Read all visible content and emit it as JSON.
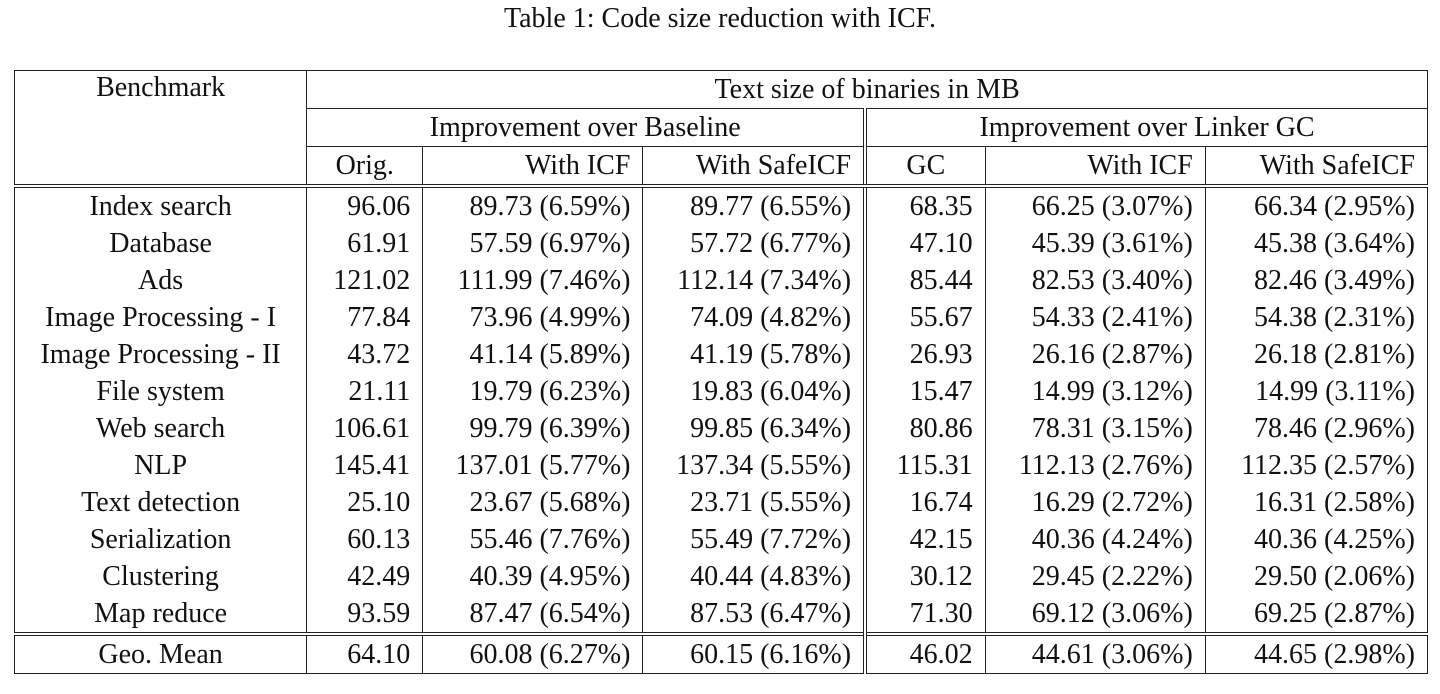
{
  "caption": "Table 1: Code size reduction with ICF.",
  "header": {
    "benchmark": "Benchmark",
    "group": "Text size of binaries in MB",
    "sub_baseline": "Improvement over Baseline",
    "sub_linker_gc": "Improvement over Linker GC",
    "cols": [
      "Orig.",
      "With ICF",
      "With SafeICF",
      "GC",
      "With ICF",
      "With SafeICF"
    ]
  },
  "rows": [
    {
      "name": "Index search",
      "cells": [
        "96.06",
        "89.73 (6.59%)",
        "89.77 (6.55%)",
        "68.35",
        "66.25 (3.07%)",
        "66.34 (2.95%)"
      ]
    },
    {
      "name": "Database",
      "cells": [
        "61.91",
        "57.59 (6.97%)",
        "57.72 (6.77%)",
        "47.10",
        "45.39 (3.61%)",
        "45.38 (3.64%)"
      ]
    },
    {
      "name": "Ads",
      "cells": [
        "121.02",
        "111.99 (7.46%)",
        "112.14 (7.34%)",
        "85.44",
        "82.53 (3.40%)",
        "82.46 (3.49%)"
      ]
    },
    {
      "name": "Image Processing - I",
      "cells": [
        "77.84",
        "73.96 (4.99%)",
        "74.09 (4.82%)",
        "55.67",
        "54.33 (2.41%)",
        "54.38 (2.31%)"
      ]
    },
    {
      "name": "Image Processing - II",
      "cells": [
        "43.72",
        "41.14 (5.89%)",
        "41.19 (5.78%)",
        "26.93",
        "26.16 (2.87%)",
        "26.18 (2.81%)"
      ]
    },
    {
      "name": "File system",
      "cells": [
        "21.11",
        "19.79 (6.23%)",
        "19.83 (6.04%)",
        "15.47",
        "14.99 (3.12%)",
        "14.99 (3.11%)"
      ]
    },
    {
      "name": "Web search",
      "cells": [
        "106.61",
        "99.79 (6.39%)",
        "99.85 (6.34%)",
        "80.86",
        "78.31 (3.15%)",
        "78.46 (2.96%)"
      ]
    },
    {
      "name": "NLP",
      "cells": [
        "145.41",
        "137.01 (5.77%)",
        "137.34 (5.55%)",
        "115.31",
        "112.13 (2.76%)",
        "112.35 (2.57%)"
      ]
    },
    {
      "name": "Text detection",
      "cells": [
        "25.10",
        "23.67 (5.68%)",
        "23.71 (5.55%)",
        "16.74",
        "16.29 (2.72%)",
        "16.31 (2.58%)"
      ]
    },
    {
      "name": "Serialization",
      "cells": [
        "60.13",
        "55.46 (7.76%)",
        "55.49 (7.72%)",
        "42.15",
        "40.36 (4.24%)",
        "40.36 (4.25%)"
      ]
    },
    {
      "name": "Clustering",
      "cells": [
        "42.49",
        "40.39 (4.95%)",
        "40.44 (4.83%)",
        "30.12",
        "29.45 (2.22%)",
        "29.50 (2.06%)"
      ]
    },
    {
      "name": "Map reduce",
      "cells": [
        "93.59",
        "87.47 (6.54%)",
        "87.53 (6.47%)",
        "71.30",
        "69.12 (3.06%)",
        "69.25 (2.87%)"
      ]
    }
  ],
  "geo_mean": {
    "name": "Geo. Mean",
    "cells": [
      "64.10",
      "60.08 (6.27%)",
      "60.15 (6.16%)",
      "46.02",
      "44.61 (3.06%)",
      "44.65 (2.98%)"
    ]
  }
}
